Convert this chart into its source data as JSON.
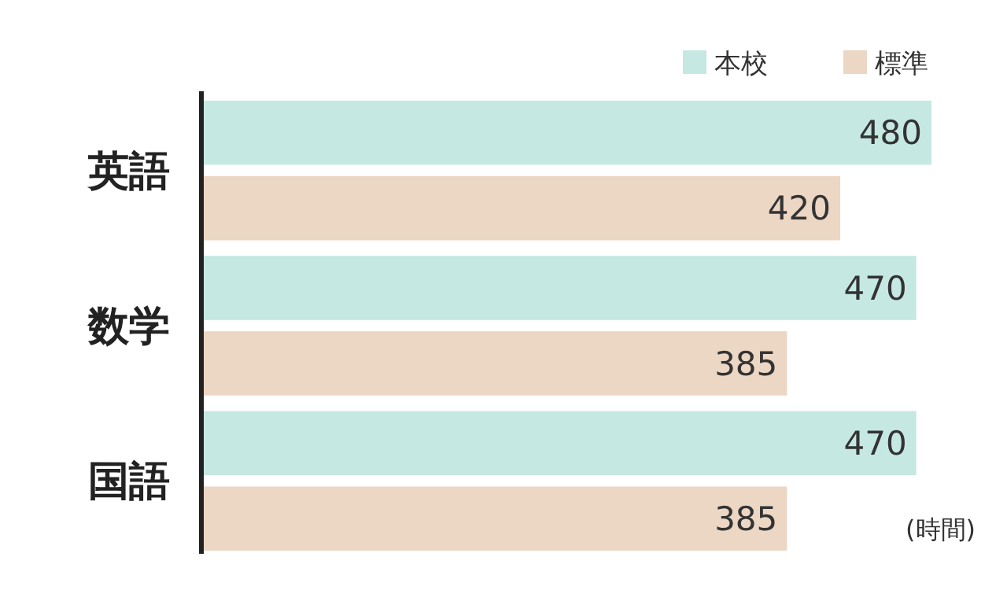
{
  "chart_data": {
    "type": "bar",
    "orientation": "horizontal",
    "categories": [
      "英語",
      "数学",
      "国語"
    ],
    "series": [
      {
        "name": "本校",
        "color": "#c6e8e2",
        "values": [
          480,
          470,
          470
        ]
      },
      {
        "name": "標準",
        "color": "#ecd6c4",
        "values": [
          420,
          385,
          385
        ]
      }
    ],
    "data_labels": true,
    "legend": "top right",
    "tick_labels": "y",
    "annotations": [
      "(時間)"
    ]
  }
}
